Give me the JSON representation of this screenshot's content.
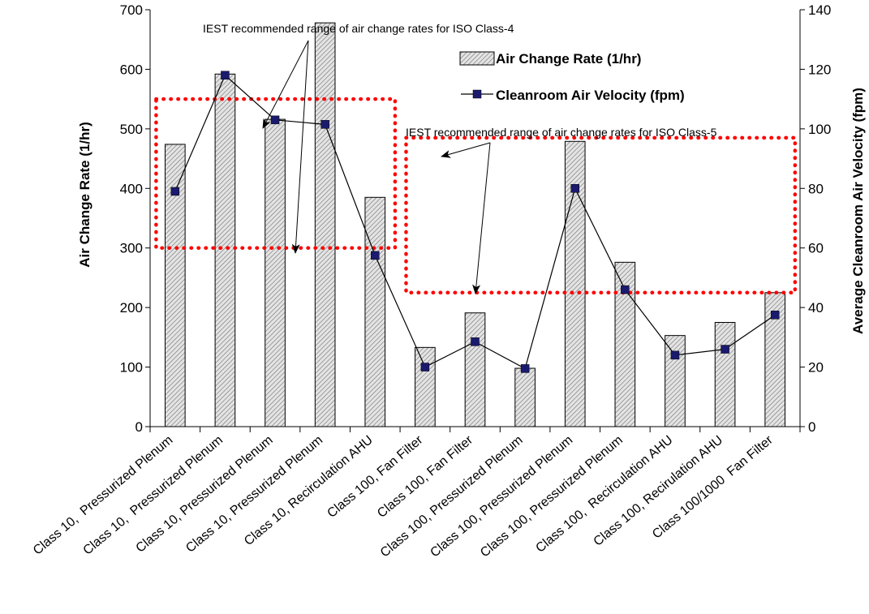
{
  "chart_data": {
    "type": "bar",
    "categories": [
      "Class 10,  Pressurized Plenum",
      "Class 10,  Pressurized Plenum",
      "Class 10, Pressurized Plenum",
      "Class 10, Pressurized Plenum",
      "Class 10, Recirculation AHU",
      "Class 100, Fan Filter",
      "Class 100, Fan Filter",
      "Class 100, Pressurized Plenum",
      "Class 100, Pressurized Plenum",
      "Class 100, Pressurized Plenum",
      "Class 100,  Recirculation AHU",
      "Class 100, Recirulation AHU",
      "Class 100/1000  Fan Filter"
    ],
    "series": [
      {
        "name": "Air Change Rate (1/hr)",
        "type": "bar",
        "axis": "left",
        "values": [
          474,
          592,
          516,
          678,
          385,
          133,
          191,
          98,
          479,
          276,
          153,
          175,
          225
        ]
      },
      {
        "name": "Cleanroom Air Velocity (fpm)",
        "type": "line",
        "axis": "right",
        "values": [
          79,
          118,
          103,
          101.5,
          57.5,
          20,
          28.5,
          19.5,
          80,
          46,
          24,
          26,
          37.5
        ]
      }
    ],
    "ylabel": "Air Change Rate (1/hr)",
    "y2label": "Average Cleanroom Air Velocity (fpm)",
    "ylim": [
      0,
      700
    ],
    "y2lim": [
      0,
      140
    ],
    "yticks": [
      0,
      100,
      200,
      300,
      400,
      500,
      600,
      700
    ],
    "y2ticks": [
      0,
      20,
      40,
      60,
      80,
      100,
      120,
      140
    ],
    "grid": false,
    "legend_position": "top-right",
    "annotations": [
      "IEST recommended range of air change rates for ISO Class-4",
      "IEST recommended range of air change rates for ISO Class-5"
    ],
    "ranges": [
      {
        "label": "ISO Class-4",
        "from_category": 0,
        "to_category": 4,
        "ymin": 300,
        "ymax": 550
      },
      {
        "label": "ISO Class-5",
        "from_category": 5,
        "to_category": 12,
        "ymin": 225,
        "ymax": 485
      }
    ],
    "colors": {
      "bar_fill": "#c8c8c8",
      "bar_edge": "#000000",
      "line": "#000000",
      "marker": "#1a1a6e",
      "range_box": "#ff0000"
    }
  }
}
